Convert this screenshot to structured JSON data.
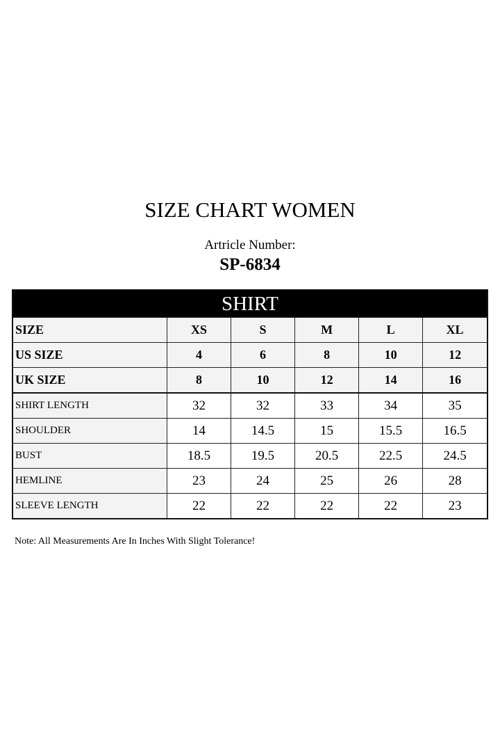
{
  "title": "SIZE CHART WOMEN",
  "article_label": "Artricle Number:",
  "article_number": "SP-6834",
  "section": "SHIRT",
  "header_rows": [
    {
      "label": "SIZE",
      "values": [
        "XS",
        "S",
        "M",
        "L",
        "XL"
      ]
    },
    {
      "label": "US SIZE",
      "values": [
        "4",
        "6",
        "8",
        "10",
        "12"
      ]
    },
    {
      "label": "UK SIZE",
      "values": [
        "8",
        "10",
        "12",
        "14",
        "16"
      ]
    }
  ],
  "rows": [
    {
      "label": "SHIRT LENGTH",
      "values": [
        "32",
        "32",
        "33",
        "34",
        "35"
      ]
    },
    {
      "label": "SHOULDER",
      "values": [
        "14",
        "14.5",
        "15",
        "15.5",
        "16.5"
      ]
    },
    {
      "label": "BUST",
      "values": [
        "18.5",
        "19.5",
        "20.5",
        "22.5",
        "24.5"
      ]
    },
    {
      "label": "HEMLINE",
      "values": [
        "23",
        "24",
        "25",
        "26",
        "28"
      ]
    },
    {
      "label": "SLEEVE LENGTH",
      "values": [
        "22",
        "22",
        "22",
        "22",
        "23"
      ]
    }
  ],
  "note": "Note: All Measurements Are In Inches With Slight Tolerance!"
}
